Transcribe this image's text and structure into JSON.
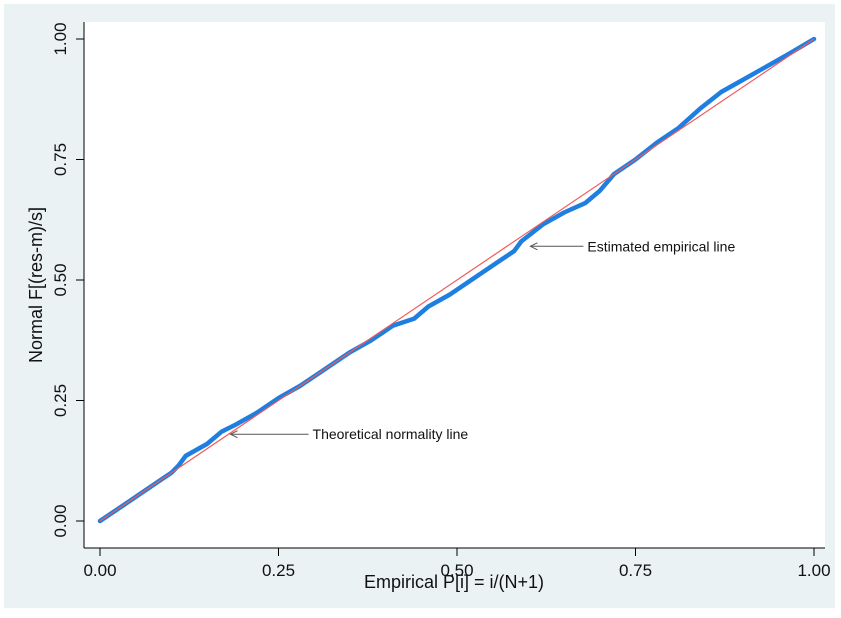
{
  "chart_data": {
    "type": "line",
    "xlabel": "Empirical P[i] = i/(N+1)",
    "ylabel": "Normal F[(res-m)/s]",
    "xlim": [
      0,
      1
    ],
    "ylim": [
      0,
      1
    ],
    "x_ticks": [
      "0.00",
      "0.25",
      "0.50",
      "0.75",
      "1.00"
    ],
    "y_ticks": [
      "0.00",
      "0.25",
      "0.50",
      "0.75",
      "1.00"
    ],
    "grid": false,
    "colors": {
      "background": "#eaf2f3",
      "plot_area": "#ffffff",
      "empirical": "#1f7fe0",
      "theoretical": "#f05a5a"
    },
    "series": [
      {
        "name": "Estimated empirical line",
        "x": [
          0.0,
          0.02,
          0.05,
          0.08,
          0.1,
          0.11,
          0.12,
          0.15,
          0.17,
          0.19,
          0.22,
          0.25,
          0.28,
          0.31,
          0.35,
          0.38,
          0.41,
          0.44,
          0.46,
          0.49,
          0.52,
          0.55,
          0.58,
          0.59,
          0.62,
          0.65,
          0.68,
          0.7,
          0.72,
          0.75,
          0.78,
          0.81,
          0.84,
          0.87,
          0.9,
          0.93,
          0.96,
          1.0
        ],
        "y": [
          0.0,
          0.02,
          0.05,
          0.08,
          0.1,
          0.115,
          0.135,
          0.16,
          0.185,
          0.2,
          0.225,
          0.255,
          0.28,
          0.31,
          0.35,
          0.375,
          0.405,
          0.42,
          0.445,
          0.47,
          0.5,
          0.53,
          0.56,
          0.58,
          0.615,
          0.64,
          0.66,
          0.685,
          0.72,
          0.75,
          0.785,
          0.815,
          0.855,
          0.89,
          0.915,
          0.94,
          0.965,
          1.0
        ]
      },
      {
        "name": "Theoretical normality line",
        "x": [
          0,
          1
        ],
        "y": [
          0,
          1
        ]
      }
    ],
    "annotations": [
      {
        "text": "Estimated empirical line",
        "x": 0.6,
        "y": 0.57
      },
      {
        "text": "Theoretical normality line",
        "x": 0.18,
        "y": 0.18
      }
    ]
  }
}
